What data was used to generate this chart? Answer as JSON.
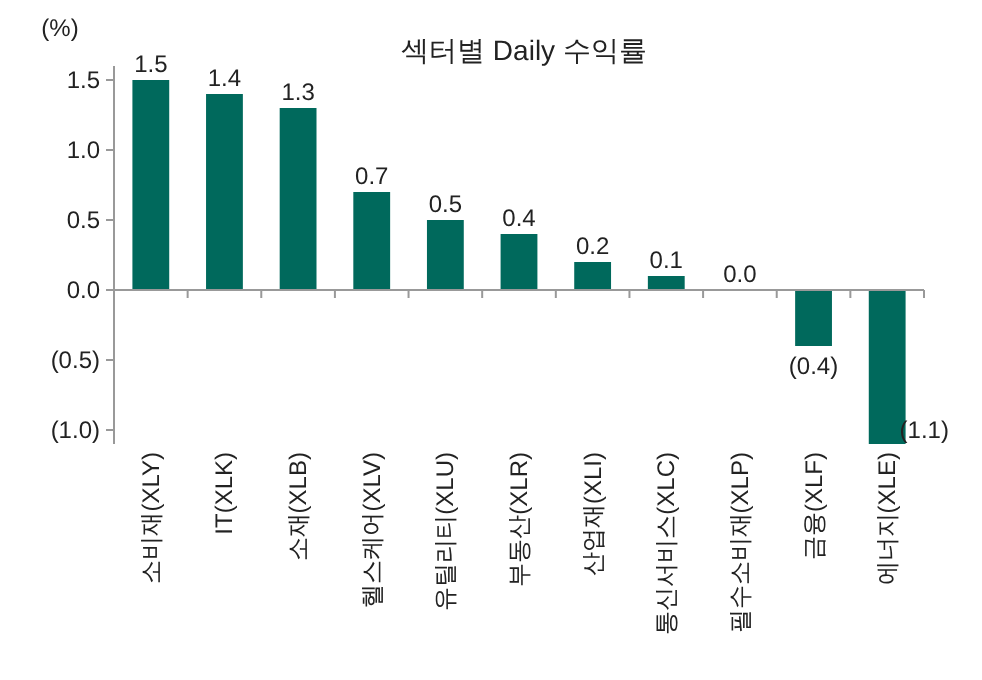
{
  "chart_data": {
    "type": "bar",
    "title": "섹터별 Daily 수익률",
    "ylabel": "(%)",
    "categories": [
      "소비재(XLY)",
      "IT(XLK)",
      "소재(XLB)",
      "헬스케어(XLV)",
      "유틸리티(XLU)",
      "부동산(XLR)",
      "산업재(XLI)",
      "통신서비스(XLC)",
      "필수소비재(XLP)",
      "금융(XLF)",
      "에너지(XLE)"
    ],
    "values": [
      1.5,
      1.4,
      1.3,
      0.7,
      0.5,
      0.4,
      0.2,
      0.1,
      0.0,
      -0.4,
      -1.1
    ],
    "value_labels": [
      "1.5",
      "1.4",
      "1.3",
      "0.7",
      "0.5",
      "0.4",
      "0.2",
      "0.1",
      "0.0",
      "(0.4)",
      "(1.1)"
    ],
    "color": "#00695c",
    "ylim": [
      -1.1,
      1.6
    ],
    "yticks": [
      {
        "value": -1.0,
        "label": "(1.0)"
      },
      {
        "value": -0.5,
        "label": "(0.5)"
      },
      {
        "value": 0.0,
        "label": "0.0"
      },
      {
        "value": 0.5,
        "label": "0.5"
      },
      {
        "value": 1.0,
        "label": "1.0"
      },
      {
        "value": 1.5,
        "label": "1.5"
      }
    ]
  }
}
